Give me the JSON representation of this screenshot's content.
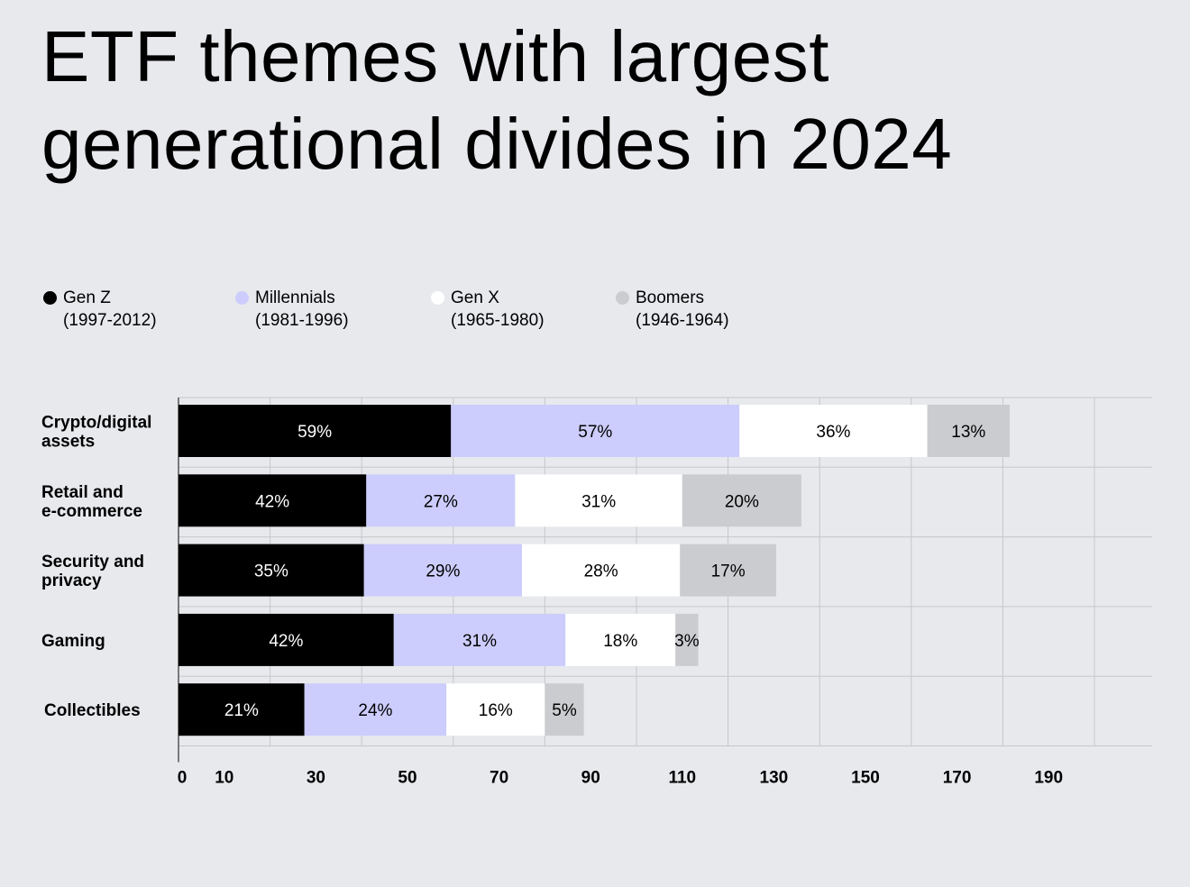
{
  "title_lines": [
    "ETF themes with largest",
    "generational divides in 2024"
  ],
  "legend": [
    {
      "name": "Gen Z",
      "years": "(1997-2012)",
      "color": "#000000"
    },
    {
      "name": "Millennials",
      "years": "(1981-1996)",
      "color": "#cccdfc"
    },
    {
      "name": "Gen X",
      "years": "(1965-1980)",
      "color": "#ffffff"
    },
    {
      "name": "Boomers",
      "years": "(1946-1964)",
      "color": "#cbcccf"
    }
  ],
  "chart_data": {
    "type": "bar",
    "orientation": "horizontal",
    "stacked": true,
    "categories": [
      [
        "Crypto/digital",
        "assets"
      ],
      [
        "Retail and",
        "e-commerce"
      ],
      [
        "Security and",
        "privacy"
      ],
      [
        "Gaming"
      ],
      [
        "Collectibles"
      ]
    ],
    "series": [
      {
        "name": "Gen Z (1997-2012)",
        "color": "#000000",
        "label_color": "#ffffff",
        "values": [
          59,
          42,
          35,
          42,
          21
        ],
        "labels": [
          "59%",
          "42%",
          "35%",
          "42%",
          "21%"
        ],
        "value_ends": [
          59.5,
          41,
          40.5,
          47,
          27.5
        ]
      },
      {
        "name": "Millennials (1981-1996)",
        "color": "#cccdfc",
        "label_color": "#000000",
        "values": [
          57,
          27,
          29,
          31,
          24
        ],
        "labels": [
          "57%",
          "27%",
          "29%",
          "31%",
          "24%"
        ],
        "value_ends": [
          122.5,
          73.5,
          75,
          84.5,
          58.5
        ]
      },
      {
        "name": "Gen X (1965-1980)",
        "color": "#ffffff",
        "label_color": "#000000",
        "values": [
          36,
          31,
          28,
          18,
          16
        ],
        "labels": [
          "36%",
          "31%",
          "28%",
          "18%",
          "16%"
        ],
        "value_ends": [
          163.5,
          110,
          109.5,
          108.5,
          80
        ]
      },
      {
        "name": "Boomers (1946-1964)",
        "color": "#cbcccf",
        "label_color": "#000000",
        "values": [
          13,
          20,
          17,
          3,
          5
        ],
        "labels": [
          "13%",
          "20%",
          "17%",
          "3%",
          "5%"
        ],
        "value_ends": [
          181.5,
          136,
          130.5,
          113.5,
          88.5
        ]
      }
    ],
    "x_ticks": [
      0,
      10,
      30,
      50,
      70,
      90,
      110,
      130,
      150,
      170,
      190
    ],
    "xlim": [
      0,
      213
    ],
    "grid": true,
    "legend_position": "top-left"
  }
}
